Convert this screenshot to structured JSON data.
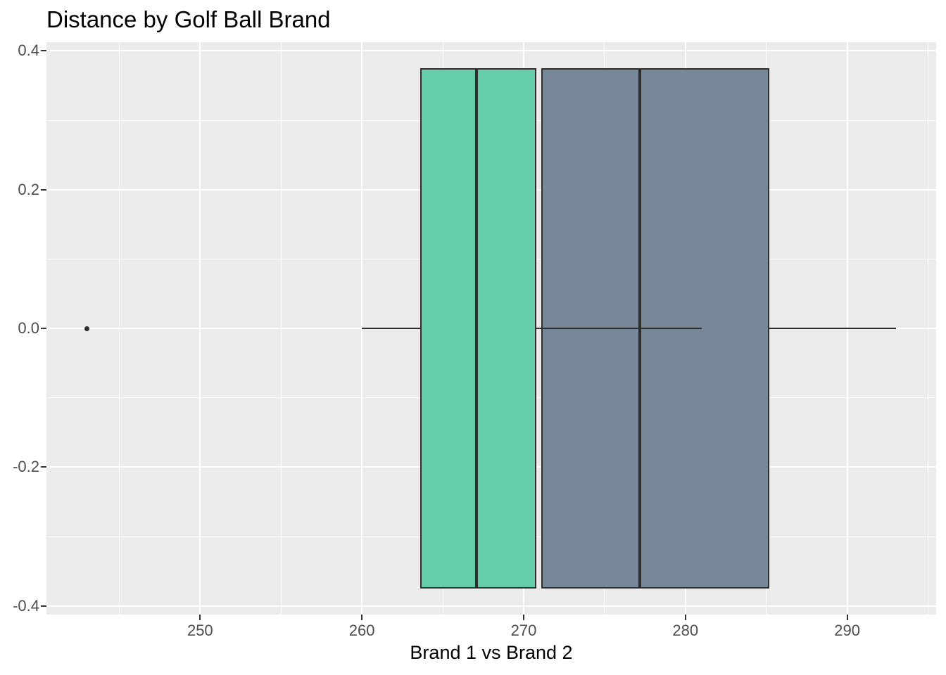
{
  "chart_data": {
    "type": "boxplot",
    "orientation": "horizontal",
    "title": "Distance by Golf Ball Brand",
    "xlabel": "Brand 1 vs Brand 2",
    "ylabel": "",
    "xlim": [
      240.5,
      295.5
    ],
    "ylim": [
      -0.4125,
      0.4125
    ],
    "x_ticks": [
      250,
      260,
      270,
      280,
      290
    ],
    "x_minor_ticks": [
      245,
      255,
      265,
      275,
      285,
      295
    ],
    "y_ticks": [
      0.4,
      0.2,
      0.0,
      -0.2,
      -0.4
    ],
    "y_tick_labels": [
      "0.4",
      "0.2",
      "0.0",
      "-0.2",
      "-0.4"
    ],
    "y_minor_ticks": [
      0.3,
      0.1,
      -0.1,
      -0.3
    ],
    "grid": "white major and minor gridlines on grey panel",
    "legend": false,
    "series": [
      {
        "name": "Brand 1",
        "fill": "#66CDAA",
        "center_y": 0,
        "box_half_height": 0.375,
        "q1": 263.6,
        "median": 267.1,
        "q3": 270.8,
        "whisker_segments": [
          [
            260.0,
            263.6
          ],
          [
            270.8,
            281.0
          ]
        ],
        "outliers": [
          243
        ]
      },
      {
        "name": "Brand 2",
        "fill": "#778899",
        "center_y": 0,
        "box_half_height": 0.375,
        "q1": 271.1,
        "median": 277.2,
        "q3": 285.2,
        "whisker_segments": [
          [
            285.2,
            293.0
          ]
        ],
        "outliers": []
      }
    ],
    "colors": {
      "panel_background": "#EBEBEB",
      "gridline": "#FFFFFF",
      "box_outline": "#2E2E2E",
      "median_line": "#2E2E2E",
      "whisker": "#2E2E2E",
      "outlier_point": "#2E2E2E",
      "tick_mark": "#333333",
      "tick_label": "#4D4D4D",
      "title": "#000000",
      "axis_title": "#000000",
      "brand1_fill": "#66CDAA",
      "brand2_fill": "#778899"
    }
  }
}
